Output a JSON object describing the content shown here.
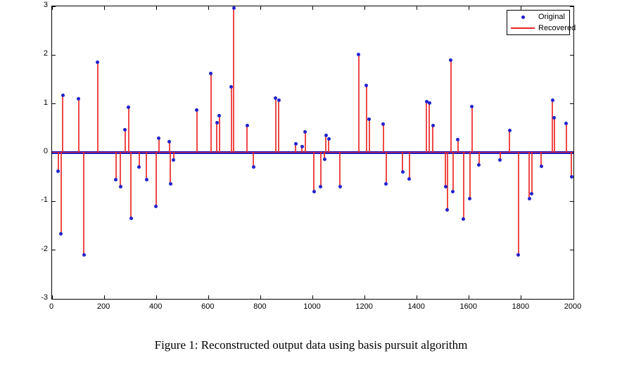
{
  "figure": {
    "caption": "Figure 1: Reconstructed output data using basis pursuit algorithm"
  },
  "legend": {
    "items": [
      {
        "label": "Original",
        "marker": "dot"
      },
      {
        "label": "Recovered",
        "marker": "line"
      }
    ],
    "position": "top-right-inside"
  },
  "colors": {
    "background": "#ffffff",
    "axis": "#000000",
    "original_dot_blue": "#2222cc",
    "recovered_red": "#e62626",
    "spike_red": "rgba(235,40,40,0.85)",
    "zero_band_blue": "#1a1acc"
  },
  "chart_data": {
    "type": "line",
    "subtype": "stem-spikes",
    "title": "",
    "xlabel": "",
    "ylabel": "",
    "xlim": [
      0,
      2000
    ],
    "ylim": [
      -3,
      3
    ],
    "x_ticks": [
      0,
      200,
      400,
      600,
      800,
      1000,
      1200,
      1400,
      1600,
      1800,
      2000
    ],
    "x_tick_labels": [
      "0",
      "200",
      "400",
      "600",
      "800",
      "1000",
      "1200",
      "1400",
      "1600",
      "1800",
      "2000"
    ],
    "y_ticks": [
      -3,
      -2,
      -1,
      0,
      1,
      2,
      3
    ],
    "y_tick_labels": [
      "-3",
      "-2",
      "-1",
      "0",
      "1",
      "2",
      "3"
    ],
    "grid": false,
    "baseline": 0,
    "series": [
      {
        "name": "Original",
        "style": "scatter-dots",
        "color": "#2222cc",
        "note": "blue dot at the tip of every spike; all remaining samples are ~0 forming the thick horizontal band"
      },
      {
        "name": "Recovered",
        "style": "vertical-line-spikes",
        "color": "#e62626",
        "note": "red line through all samples; appears as vertical spikes from baseline 0 plus a red line along y=0"
      }
    ],
    "spikes": [
      [
        23,
        -0.38
      ],
      [
        34,
        -1.67
      ],
      [
        41,
        1.18
      ],
      [
        102,
        1.1
      ],
      [
        122,
        -2.1
      ],
      [
        175,
        1.85
      ],
      [
        245,
        -0.55
      ],
      [
        262,
        -0.7
      ],
      [
        280,
        0.47
      ],
      [
        293,
        0.93
      ],
      [
        303,
        -1.35
      ],
      [
        334,
        -0.3
      ],
      [
        363,
        -0.56
      ],
      [
        399,
        -1.1
      ],
      [
        410,
        0.3
      ],
      [
        450,
        0.22
      ],
      [
        454,
        -0.64
      ],
      [
        466,
        -0.15
      ],
      [
        555,
        0.87
      ],
      [
        609,
        1.62
      ],
      [
        632,
        0.61
      ],
      [
        642,
        0.76
      ],
      [
        688,
        1.35
      ],
      [
        697,
        2.96
      ],
      [
        748,
        0.55
      ],
      [
        773,
        -0.3
      ],
      [
        858,
        1.12
      ],
      [
        870,
        1.08
      ],
      [
        934,
        0.18
      ],
      [
        959,
        0.12
      ],
      [
        971,
        0.42
      ],
      [
        1005,
        -0.8
      ],
      [
        1030,
        -0.7
      ],
      [
        1045,
        -0.13
      ],
      [
        1051,
        0.36
      ],
      [
        1061,
        0.28
      ],
      [
        1104,
        -0.7
      ],
      [
        1176,
        2.01
      ],
      [
        1206,
        1.38
      ],
      [
        1217,
        0.68
      ],
      [
        1270,
        0.58
      ],
      [
        1282,
        -0.64
      ],
      [
        1345,
        -0.4
      ],
      [
        1371,
        -0.54
      ],
      [
        1436,
        1.05
      ],
      [
        1448,
        1.02
      ],
      [
        1461,
        0.55
      ],
      [
        1510,
        -0.7
      ],
      [
        1516,
        -1.17
      ],
      [
        1530,
        1.9
      ],
      [
        1538,
        -0.8
      ],
      [
        1557,
        0.26
      ],
      [
        1578,
        -1.36
      ],
      [
        1602,
        -0.95
      ],
      [
        1610,
        0.94
      ],
      [
        1638,
        -0.25
      ],
      [
        1719,
        -0.15
      ],
      [
        1755,
        0.46
      ],
      [
        1789,
        -2.1
      ],
      [
        1831,
        -0.95
      ],
      [
        1840,
        -0.85
      ],
      [
        1876,
        -0.28
      ],
      [
        1920,
        1.08
      ],
      [
        1926,
        0.72
      ],
      [
        1972,
        0.6
      ],
      [
        1993,
        -0.5
      ]
    ]
  }
}
